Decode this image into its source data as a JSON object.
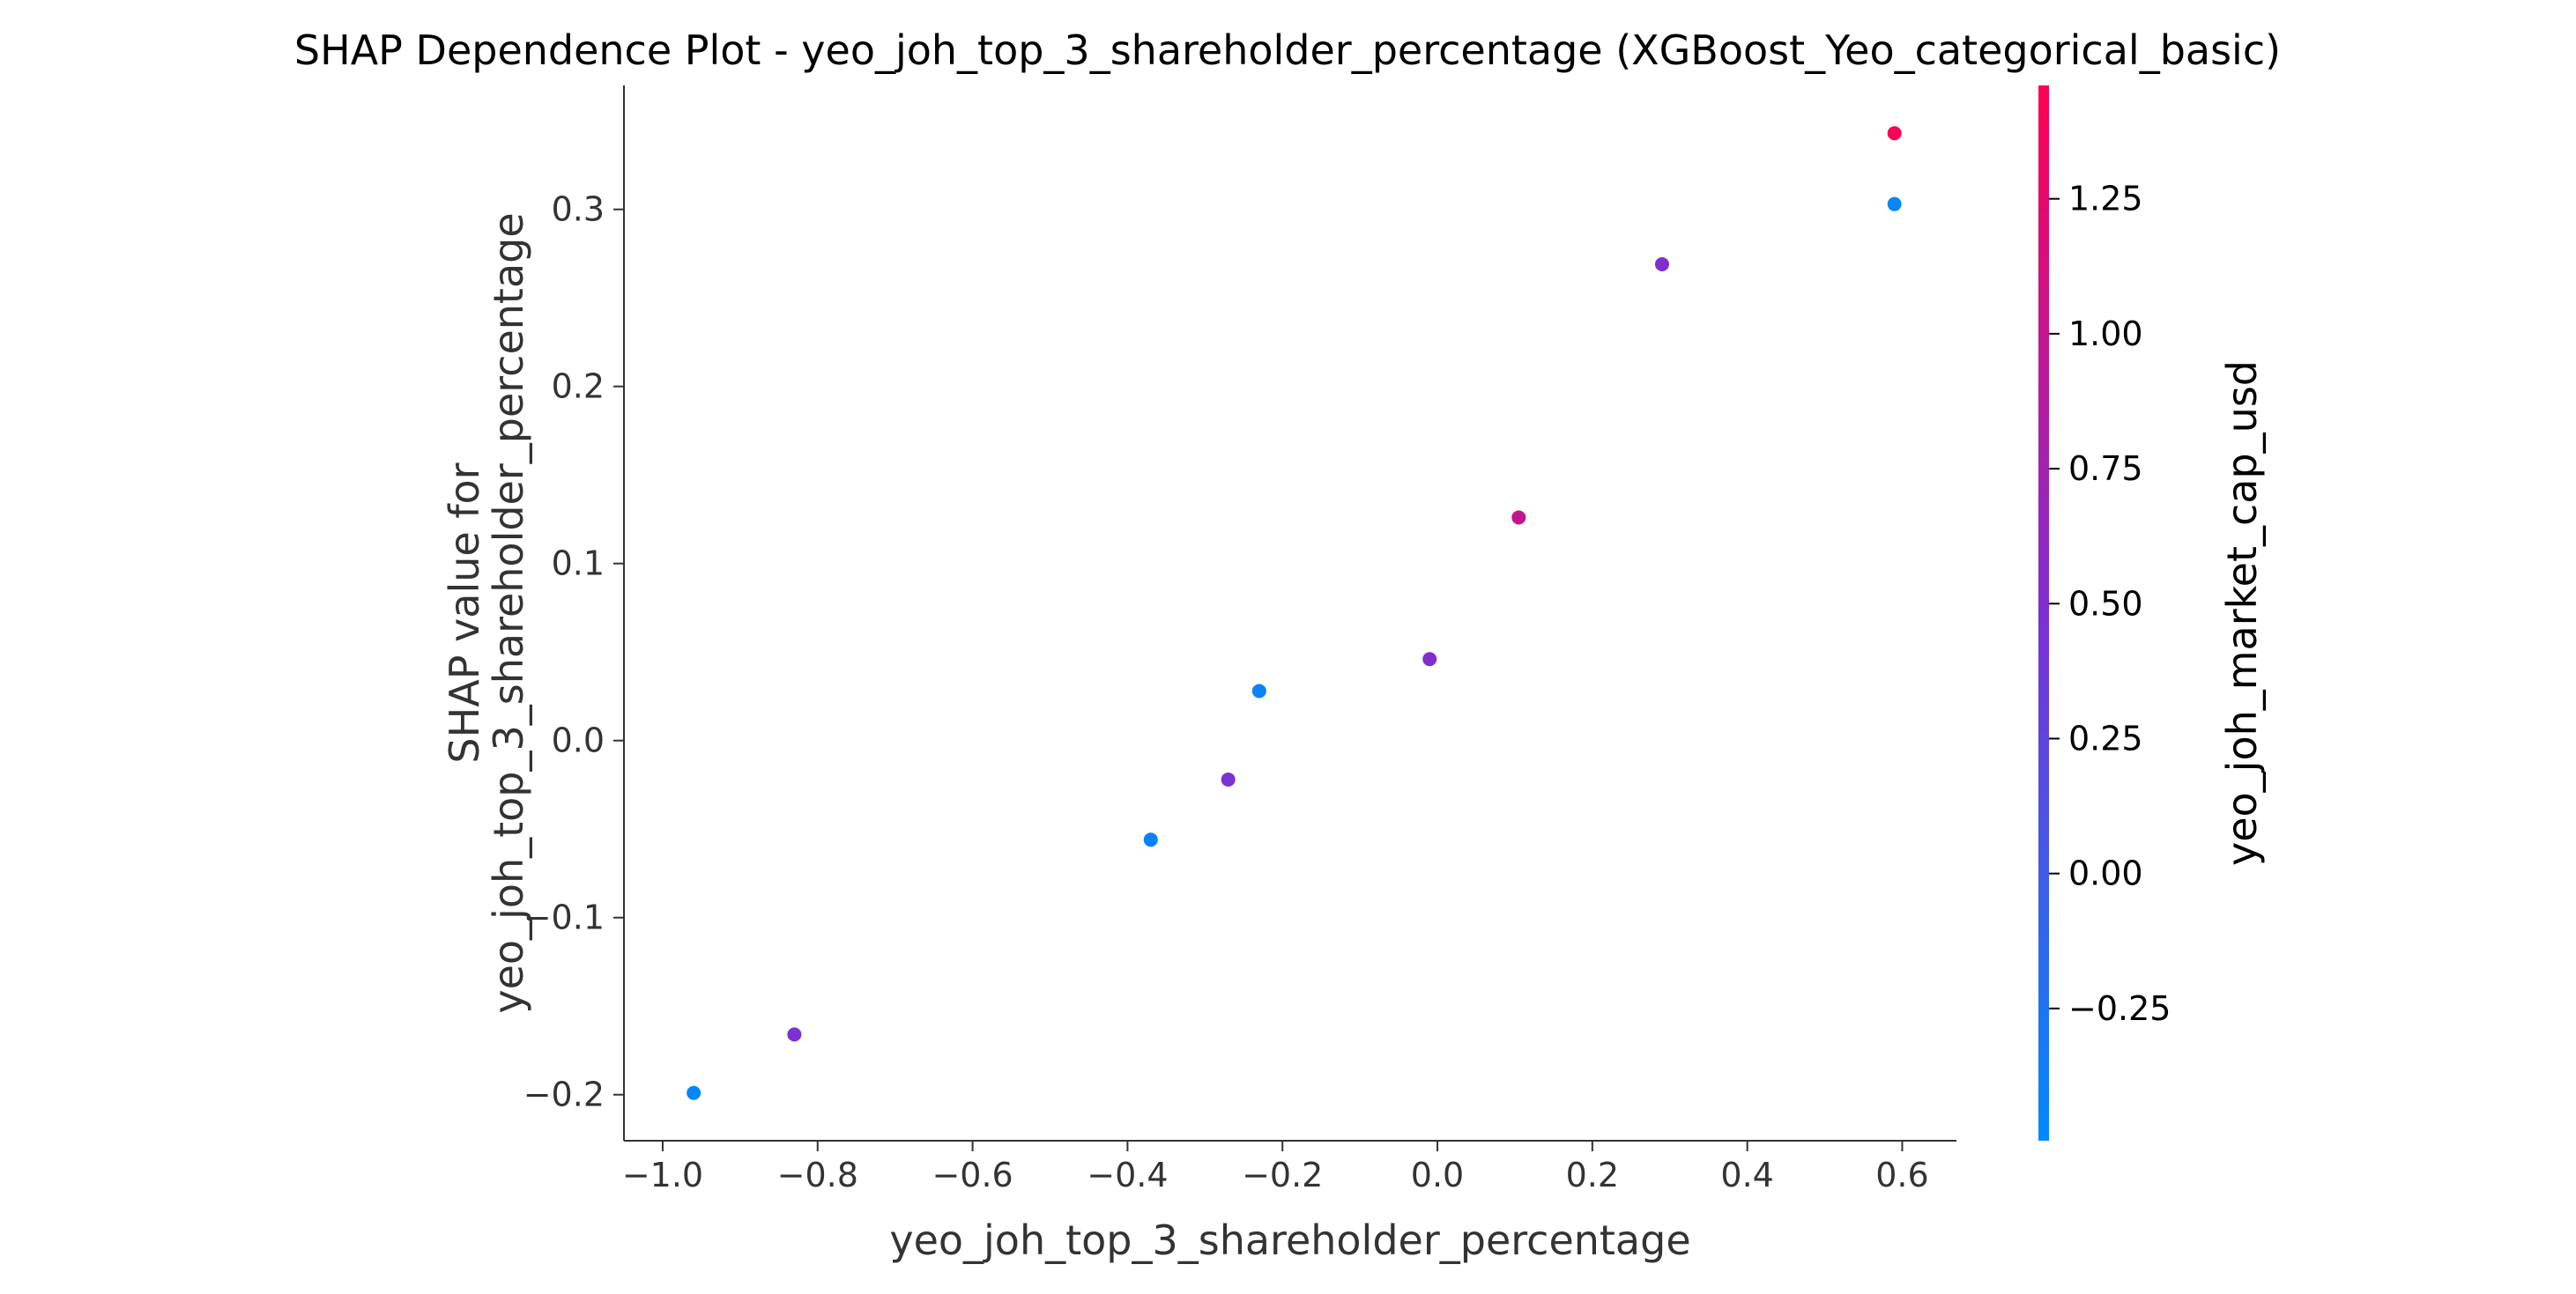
{
  "chart_data": {
    "type": "scatter",
    "title": "SHAP Dependence Plot - yeo_joh_top_3_shareholder_percentage (XGBoost_Yeo_categorical_basic)",
    "xlabel": "yeo_joh_top_3_shareholder_percentage",
    "ylabel_line1": "SHAP value for",
    "ylabel_line2": "yeo_joh_top_3_shareholder_percentage",
    "colorbar_label": "yeo_joh_market_cap_usd",
    "xlim": [
      -1.05,
      0.67
    ],
    "ylim": [
      -0.226,
      0.37
    ],
    "clim": [
      -0.495,
      1.46
    ],
    "xticks": [
      -1.0,
      -0.8,
      -0.6,
      -0.4,
      -0.2,
      0.0,
      0.2,
      0.4,
      0.6
    ],
    "xtick_labels": [
      "−1.0",
      "−0.8",
      "−0.6",
      "−0.4",
      "−0.2",
      "0.0",
      "0.2",
      "0.4",
      "0.6"
    ],
    "yticks": [
      -0.2,
      -0.1,
      0.0,
      0.1,
      0.2,
      0.3
    ],
    "ytick_labels": [
      "−0.2",
      "−0.1",
      "0.0",
      "0.1",
      "0.2",
      "0.3"
    ],
    "cticks": [
      -0.25,
      0.0,
      0.25,
      0.5,
      0.75,
      1.0,
      1.25
    ],
    "ctick_labels": [
      "−0.25",
      "0.00",
      "0.25",
      "0.50",
      "0.75",
      "1.00",
      "1.25"
    ],
    "points": [
      {
        "x": -0.96,
        "y": -0.199,
        "c": -0.45
      },
      {
        "x": -0.83,
        "y": -0.166,
        "c": 0.45
      },
      {
        "x": -0.37,
        "y": -0.056,
        "c": -0.4
      },
      {
        "x": -0.27,
        "y": -0.022,
        "c": 0.45
      },
      {
        "x": -0.23,
        "y": 0.028,
        "c": -0.42
      },
      {
        "x": -0.01,
        "y": 0.046,
        "c": 0.5
      },
      {
        "x": 0.105,
        "y": 0.126,
        "c": 1.0
      },
      {
        "x": 0.29,
        "y": 0.269,
        "c": 0.5
      },
      {
        "x": 0.59,
        "y": 0.303,
        "c": -0.45
      },
      {
        "x": 0.59,
        "y": 0.343,
        "c": 1.42
      }
    ],
    "colormap": [
      "#008afb",
      "#7e2fd1",
      "#ff0052"
    ],
    "grid": false,
    "legend": "none"
  }
}
